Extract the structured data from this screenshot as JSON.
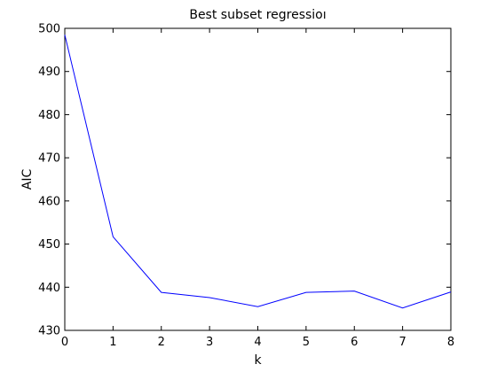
{
  "chart_data": {
    "type": "line",
    "title": "Best subset regressioı",
    "xlabel": "k",
    "ylabel": "AIC",
    "xlim": [
      0,
      8
    ],
    "ylim": [
      430,
      500
    ],
    "xticks": [
      0,
      1,
      2,
      3,
      4,
      5,
      6,
      7,
      8
    ],
    "yticks": [
      430,
      440,
      450,
      460,
      470,
      480,
      490,
      500
    ],
    "grid": false,
    "series": [
      {
        "color": "#0000ff",
        "x": [
          0,
          1,
          2,
          3,
          4,
          5,
          6,
          7,
          8
        ],
        "y": [
          498.5,
          451.7,
          438.8,
          437.6,
          435.5,
          438.8,
          439.1,
          435.2,
          438.9
        ]
      }
    ]
  }
}
